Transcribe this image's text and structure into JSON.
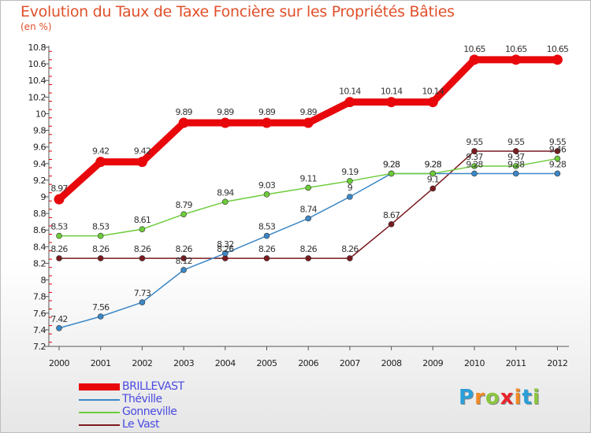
{
  "title": "Evolution du Taux de Taxe Foncière sur les Propriétés Bâties",
  "unit_label": "(en %)",
  "brand": [
    "P",
    "r",
    "o",
    "x",
    "i",
    "t",
    "i"
  ],
  "brand_colors": [
    "#2a9fd8",
    "#f08a24",
    "#8cc63f",
    "#e8242b",
    "#f08a24",
    "#2a9fd8",
    "#8cc63f"
  ],
  "chart_data": {
    "type": "line",
    "title": "Evolution du Taux de Taxe Foncière sur les Propriétés Bâties",
    "ylabel": "(en %)",
    "ylim": [
      7.2,
      10.8
    ],
    "yticks": [
      "7.2",
      "7.4",
      "7.6",
      "7.8",
      "8",
      "8.2",
      "8.4",
      "8.6",
      "8.8",
      "9",
      "9.2",
      "9.4",
      "9.6",
      "9.8",
      "10",
      "10.2",
      "10.4",
      "10.6",
      "10.8"
    ],
    "categories": [
      "2000",
      "2001",
      "2002",
      "2003",
      "2004",
      "2005",
      "2006",
      "2007",
      "2008",
      "2009",
      "2010",
      "2011",
      "2012"
    ],
    "series": [
      {
        "name": "BRILLEVAST",
        "color": "#e8080c",
        "values": [
          8.97,
          9.42,
          9.42,
          9.89,
          9.89,
          9.89,
          9.89,
          10.14,
          10.14,
          10.14,
          10.65,
          10.65,
          10.65
        ],
        "labels": [
          "8.97",
          "9.42",
          "9.42",
          "9.89",
          "9.89",
          "9.89",
          "9.89",
          "10.14",
          "10.14",
          "10.14",
          "10.65",
          "10.65",
          "10.65"
        ]
      },
      {
        "name": "Théville",
        "color": "#3c87c6",
        "values": [
          7.42,
          7.56,
          7.73,
          8.12,
          8.32,
          8.53,
          8.74,
          9.0,
          9.28,
          9.28,
          9.28,
          9.28,
          9.28
        ],
        "labels": [
          "7.42",
          "7.56",
          "7.73",
          "8.12",
          "8.32",
          "8.53",
          "8.74",
          "9",
          "9.28",
          "9.28",
          "9.28",
          "9.28",
          "9.28"
        ]
      },
      {
        "name": "Gonneville",
        "color": "#6dcc3a",
        "values": [
          8.53,
          8.53,
          8.61,
          8.79,
          8.94,
          9.03,
          9.11,
          9.19,
          9.28,
          9.28,
          9.37,
          9.37,
          9.46
        ],
        "labels": [
          "8.53",
          "8.53",
          "8.61",
          "8.79",
          "8.94",
          "9.03",
          "9.11",
          "9.19",
          "9.28",
          "9.28",
          "9.37",
          "9.37",
          "9.46"
        ]
      },
      {
        "name": "Le Vast",
        "color": "#7a1a1e",
        "values": [
          8.26,
          8.26,
          8.26,
          8.26,
          8.26,
          8.26,
          8.26,
          8.26,
          8.67,
          9.1,
          9.55,
          9.55,
          9.55
        ],
        "labels": [
          "8.26",
          "8.26",
          "8.26",
          "8.26",
          "8.26",
          "8.26",
          "8.26",
          "8.26",
          "8.67",
          "9.1",
          "9.55",
          "9.55",
          "9.55"
        ]
      }
    ],
    "legend": [
      "BRILLEVAST",
      "Théville",
      "Gonneville",
      "Le Vast"
    ],
    "grid": false
  }
}
